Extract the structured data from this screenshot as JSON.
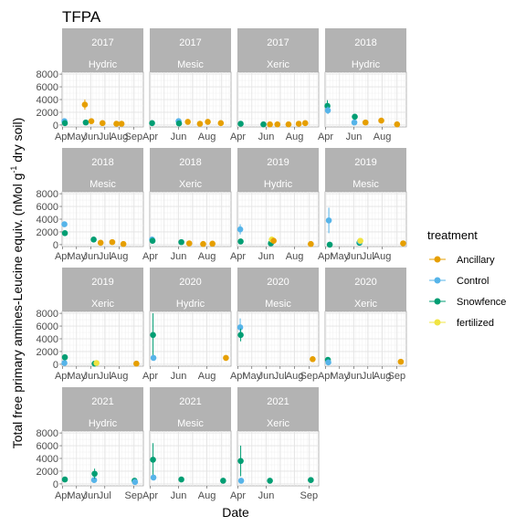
{
  "chart_data": {
    "type": "scatter",
    "title": "TFPA",
    "xlabel": "Date",
    "ylabel_main": "Total free primary amines-Leucine equiv. (nMol g",
    "ylabel_sup": "-1",
    "ylabel_end": " dry soil)",
    "yticks": [
      "0",
      "2000",
      "4000",
      "6000",
      "8000"
    ],
    "ylim": [
      -300,
      8300
    ],
    "xlim_doy": [
      90,
      265
    ],
    "grid": true,
    "legend": {
      "title": "treatment",
      "position": "right",
      "entries": [
        {
          "name": "Ancillary",
          "color": "#E69F00"
        },
        {
          "name": "Control",
          "color": "#56B4E9"
        },
        {
          "name": "Snowfence",
          "color": "#009E73"
        },
        {
          "name": "fertilized",
          "color": "#F0E442"
        }
      ]
    },
    "panels": [
      {
        "year": "2017",
        "site": "Hydric",
        "xticks": [
          "Apr",
          "May",
          "Jun",
          "Jul",
          "Aug",
          "Sep"
        ],
        "points": [
          {
            "t": "Control",
            "x": 95,
            "y": 600,
            "err": 250
          },
          {
            "t": "Snowfence",
            "x": 96,
            "y": 300,
            "err": 150
          },
          {
            "t": "Ancillary",
            "x": 139,
            "y": 3200,
            "err": 800
          },
          {
            "t": "Snowfence",
            "x": 141,
            "y": 400,
            "err": 150
          },
          {
            "t": "Ancillary",
            "x": 153,
            "y": 600,
            "err": 150
          },
          {
            "t": "Ancillary",
            "x": 177,
            "y": 300,
            "err": 100
          },
          {
            "t": "Ancillary",
            "x": 207,
            "y": 200,
            "err": 80
          },
          {
            "t": "Ancillary",
            "x": 218,
            "y": 200,
            "err": 80
          }
        ]
      },
      {
        "year": "2017",
        "site": "Mesic",
        "xticks": [
          "Apr",
          "Jun",
          "Aug"
        ],
        "points": [
          {
            "t": "Snowfence",
            "x": 95,
            "y": 300,
            "err": 100
          },
          {
            "t": "Control",
            "x": 152,
            "y": 600,
            "err": 200
          },
          {
            "t": "Snowfence",
            "x": 153,
            "y": 250,
            "err": 100
          },
          {
            "t": "Ancillary",
            "x": 172,
            "y": 500,
            "err": 150
          },
          {
            "t": "Ancillary",
            "x": 198,
            "y": 200,
            "err": 80
          },
          {
            "t": "Ancillary",
            "x": 215,
            "y": 500,
            "err": 100
          },
          {
            "t": "Ancillary",
            "x": 243,
            "y": 300,
            "err": 80
          }
        ]
      },
      {
        "year": "2017",
        "site": "Xeric",
        "xticks": [
          "Apr",
          "Jun",
          "Aug"
        ],
        "points": [
          {
            "t": "Snowfence",
            "x": 97,
            "y": 200,
            "err": 80
          },
          {
            "t": "Snowfence",
            "x": 146,
            "y": 100,
            "err": 60
          },
          {
            "t": "Ancillary",
            "x": 160,
            "y": 100,
            "err": 50
          },
          {
            "t": "Ancillary",
            "x": 176,
            "y": 100,
            "err": 50
          },
          {
            "t": "Ancillary",
            "x": 200,
            "y": 100,
            "err": 50
          },
          {
            "t": "Ancillary",
            "x": 222,
            "y": 200,
            "err": 60
          },
          {
            "t": "Ancillary",
            "x": 236,
            "y": 300,
            "err": 80
          }
        ]
      },
      {
        "year": "2018",
        "site": "Hydric",
        "xticks": [
          "Apr",
          "Jun",
          "Aug"
        ],
        "points": [
          {
            "t": "Snowfence",
            "x": 95,
            "y": 3000,
            "err": 900
          },
          {
            "t": "Control",
            "x": 96,
            "y": 2300,
            "err": 600
          },
          {
            "t": "Control",
            "x": 153,
            "y": 400,
            "err": 150
          },
          {
            "t": "Snowfence",
            "x": 154,
            "y": 1300,
            "err": 300
          },
          {
            "t": "Ancillary",
            "x": 177,
            "y": 400,
            "err": 100
          },
          {
            "t": "Ancillary",
            "x": 211,
            "y": 700,
            "err": 150
          },
          {
            "t": "Ancillary",
            "x": 245,
            "y": 100,
            "err": 50
          }
        ]
      },
      {
        "year": "2018",
        "site": "Mesic",
        "xticks": [
          "Apr",
          "May",
          "Jun",
          "Jul",
          "Aug"
        ],
        "points": [
          {
            "t": "Control",
            "x": 95,
            "y": 3200,
            "err": 400
          },
          {
            "t": "Snowfence",
            "x": 96,
            "y": 1800,
            "err": 300
          },
          {
            "t": "Snowfence",
            "x": 158,
            "y": 800,
            "err": 200
          },
          {
            "t": "Ancillary",
            "x": 173,
            "y": 300,
            "err": 100
          },
          {
            "t": "Ancillary",
            "x": 198,
            "y": 400,
            "err": 100
          },
          {
            "t": "Ancillary",
            "x": 222,
            "y": 100,
            "err": 50
          }
        ]
      },
      {
        "year": "2018",
        "site": "Xeric",
        "xticks": [
          "Apr",
          "Jun",
          "Aug"
        ],
        "points": [
          {
            "t": "Control",
            "x": 95,
            "y": 800,
            "err": 300
          },
          {
            "t": "Snowfence",
            "x": 96,
            "y": 600,
            "err": 200
          },
          {
            "t": "Snowfence",
            "x": 158,
            "y": 400,
            "err": 150
          },
          {
            "t": "Ancillary",
            "x": 175,
            "y": 200,
            "err": 80
          },
          {
            "t": "Ancillary",
            "x": 205,
            "y": 100,
            "err": 50
          },
          {
            "t": "Ancillary",
            "x": 225,
            "y": 150,
            "err": 60
          }
        ]
      },
      {
        "year": "2019",
        "site": "Hydric",
        "xticks": [
          "Apr",
          "Jun",
          "Aug"
        ],
        "points": [
          {
            "t": "Control",
            "x": 96,
            "y": 2400,
            "err": 800
          },
          {
            "t": "Snowfence",
            "x": 97,
            "y": 500,
            "err": 200
          },
          {
            "t": "Snowfence",
            "x": 162,
            "y": 200,
            "err": 100
          },
          {
            "t": "fertilized",
            "x": 164,
            "y": 800,
            "err": 200
          },
          {
            "t": "Ancillary",
            "x": 168,
            "y": 600,
            "err": 200
          },
          {
            "t": "Ancillary",
            "x": 248,
            "y": 100,
            "err": 50
          }
        ]
      },
      {
        "year": "2019",
        "site": "Mesic",
        "xticks": [
          "Apr",
          "May",
          "Jun",
          "Jul",
          "Aug"
        ],
        "points": [
          {
            "t": "Control",
            "x": 98,
            "y": 3800,
            "err": 2000
          },
          {
            "t": "Snowfence",
            "x": 100,
            "y": 0,
            "err": 80
          },
          {
            "t": "Snowfence",
            "x": 164,
            "y": 300,
            "err": 100
          },
          {
            "t": "Control",
            "x": 165,
            "y": 500,
            "err": 150
          },
          {
            "t": "fertilized",
            "x": 166,
            "y": 600,
            "err": 200
          },
          {
            "t": "Ancillary",
            "x": 258,
            "y": 200,
            "err": 80
          }
        ]
      },
      {
        "year": "2019",
        "site": "Xeric",
        "xticks": [
          "Apr",
          "May",
          "Jun",
          "Jul",
          "Aug"
        ],
        "points": [
          {
            "t": "Control",
            "x": 95,
            "y": 200,
            "err": 100
          },
          {
            "t": "Snowfence",
            "x": 96,
            "y": 1100,
            "err": 300
          },
          {
            "t": "Snowfence",
            "x": 160,
            "y": 100,
            "err": 60
          },
          {
            "t": "fertilized",
            "x": 164,
            "y": 200,
            "err": 80
          },
          {
            "t": "Ancillary",
            "x": 250,
            "y": 100,
            "err": 50
          }
        ]
      },
      {
        "year": "2020",
        "site": "Hydric",
        "xticks": [
          "Apr",
          "Jun",
          "Aug"
        ],
        "points": [
          {
            "t": "Snowfence",
            "x": 97,
            "y": 4600,
            "err": 3400
          },
          {
            "t": "Control",
            "x": 98,
            "y": 1000,
            "err": 300
          },
          {
            "t": "Ancillary",
            "x": 254,
            "y": 1000,
            "err": 250
          }
        ]
      },
      {
        "year": "2020",
        "site": "Mesic",
        "xticks": [
          "Apr",
          "May",
          "Jun",
          "Jul",
          "Aug",
          "Sep"
        ],
        "points": [
          {
            "t": "Control",
            "x": 96,
            "y": 5800,
            "err": 1400
          },
          {
            "t": "Snowfence",
            "x": 97,
            "y": 4600,
            "err": 1000
          },
          {
            "t": "Ancillary",
            "x": 252,
            "y": 800,
            "err": 200
          }
        ]
      },
      {
        "year": "2020",
        "site": "Xeric",
        "xticks": [
          "Apr",
          "May",
          "Jun",
          "Jul",
          "Aug",
          "Sep"
        ],
        "points": [
          {
            "t": "Snowfence",
            "x": 96,
            "y": 700,
            "err": 250
          },
          {
            "t": "Control",
            "x": 97,
            "y": 300,
            "err": 100
          },
          {
            "t": "Ancillary",
            "x": 253,
            "y": 400,
            "err": 100
          }
        ]
      },
      {
        "year": "2021",
        "site": "Hydric",
        "xticks": [
          "Apr",
          "May",
          "Jun",
          "Jul",
          "Sep"
        ],
        "points": [
          {
            "t": "Snowfence",
            "x": 96,
            "y": 700,
            "err": 200
          },
          {
            "t": "Control",
            "x": 159,
            "y": 600,
            "err": 200
          },
          {
            "t": "Snowfence",
            "x": 160,
            "y": 1600,
            "err": 800
          },
          {
            "t": "Snowfence",
            "x": 246,
            "y": 500,
            "err": 150
          },
          {
            "t": "Control",
            "x": 247,
            "y": 300,
            "err": 100
          }
        ]
      },
      {
        "year": "2021",
        "site": "Mesic",
        "xticks": [
          "Apr",
          "Jun",
          "Aug"
        ],
        "points": [
          {
            "t": "Snowfence",
            "x": 97,
            "y": 3800,
            "err": 2600
          },
          {
            "t": "Control",
            "x": 98,
            "y": 1000,
            "err": 300
          },
          {
            "t": "Snowfence",
            "x": 158,
            "y": 700,
            "err": 200
          },
          {
            "t": "Snowfence",
            "x": 248,
            "y": 500,
            "err": 150
          }
        ]
      },
      {
        "year": "2021",
        "site": "Xeric",
        "xticks": [
          "Apr",
          "Jun",
          "Sep"
        ],
        "points": [
          {
            "t": "Snowfence",
            "x": 97,
            "y": 3600,
            "err": 2400
          },
          {
            "t": "Control",
            "x": 98,
            "y": 500,
            "err": 150
          },
          {
            "t": "Snowfence",
            "x": 160,
            "y": 500,
            "err": 150
          },
          {
            "t": "Snowfence",
            "x": 248,
            "y": 600,
            "err": 150
          }
        ]
      }
    ]
  }
}
